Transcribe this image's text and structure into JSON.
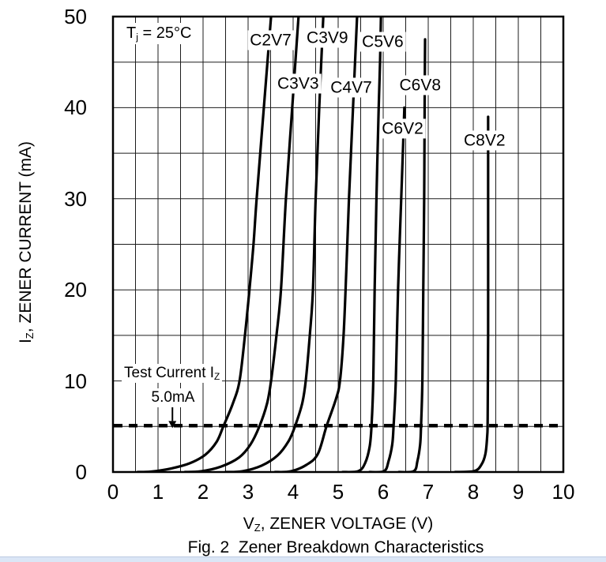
{
  "figure": {
    "caption": "Fig. 2  Zener Breakdown Characteristics",
    "annotation": {
      "prefix": "T",
      "sub": "j",
      "rest": " = 25°C"
    },
    "x_axis_title": {
      "prefix": "V",
      "sub": "Z",
      "rest": ", ZENER VOLTAGE (V)"
    },
    "y_axis_title": {
      "prefix": "I",
      "sub": "Z",
      "rest": ", ZENER CURRENT (mA)"
    }
  },
  "test_current": {
    "line1_prefix": "Test Current I",
    "line1_sub": "Z",
    "line2": "5.0mA",
    "value_mA": 5
  },
  "colors": {
    "ink": "#000000",
    "grid": "#1c1c1c",
    "page_strip": "#dbe6f6"
  },
  "chart_data": {
    "type": "line",
    "title": "Fig. 2  Zener Breakdown Characteristics",
    "xlabel": "VZ, ZENER VOLTAGE (V)",
    "ylabel": "IZ, ZENER CURRENT (mA)",
    "xlim": [
      0,
      10
    ],
    "ylim": [
      0,
      50
    ],
    "x_grid_step": 0.5,
    "y_grid_step": 5,
    "grid": true,
    "x_ticks": [
      "0",
      "1",
      "2",
      "3",
      "4",
      "5",
      "6",
      "7",
      "8",
      "9",
      "10"
    ],
    "x_tick_values": [
      0,
      1,
      2,
      3,
      4,
      5,
      6,
      7,
      8,
      9,
      10
    ],
    "y_ticks": [
      "0",
      "10",
      "20",
      "30",
      "40",
      "50"
    ],
    "y_tick_values": [
      0,
      10,
      20,
      30,
      40,
      50
    ],
    "dashed_test_line_mA": 5,
    "arrow": {
      "v": 1.32,
      "i_from": 7.6,
      "i_to": 5.6
    },
    "series": [
      {
        "name": "C2V7",
        "label_center": {
          "v": 3.5,
          "i": 47.4
        },
        "points": [
          [
            0.55,
            0
          ],
          [
            0.85,
            0.05
          ],
          [
            1.3,
            0.4
          ],
          [
            1.7,
            0.95
          ],
          [
            2.05,
            1.9
          ],
          [
            2.3,
            3.3
          ],
          [
            2.45,
            5
          ],
          [
            2.66,
            7.5
          ],
          [
            2.81,
            10
          ],
          [
            2.93,
            15
          ],
          [
            3.03,
            20
          ],
          [
            3.12,
            25
          ],
          [
            3.19,
            30
          ],
          [
            3.35,
            40
          ],
          [
            3.51,
            50
          ]
        ]
      },
      {
        "name": "C3V3",
        "label_center": {
          "v": 4.11,
          "i": 42.6
        },
        "points": [
          [
            1.6,
            0
          ],
          [
            1.95,
            0.08
          ],
          [
            2.4,
            0.6
          ],
          [
            2.8,
            1.6
          ],
          [
            3.05,
            3
          ],
          [
            3.25,
            5
          ],
          [
            3.42,
            7.5
          ],
          [
            3.51,
            10
          ],
          [
            3.63,
            15
          ],
          [
            3.73,
            20
          ],
          [
            3.84,
            30
          ],
          [
            3.98,
            40
          ],
          [
            4.12,
            50
          ]
        ]
      },
      {
        "name": "C3V9",
        "label_center": {
          "v": 4.76,
          "i": 47.7
        },
        "points": [
          [
            2.5,
            0
          ],
          [
            2.87,
            0.08
          ],
          [
            3.3,
            0.7
          ],
          [
            3.65,
            1.8
          ],
          [
            3.9,
            3.4
          ],
          [
            4.04,
            5
          ],
          [
            4.2,
            7.5
          ],
          [
            4.28,
            10
          ],
          [
            4.37,
            15
          ],
          [
            4.44,
            20
          ],
          [
            4.5,
            30
          ],
          [
            4.58,
            40
          ],
          [
            4.67,
            50
          ]
        ]
      },
      {
        "name": "C4V7",
        "label_center": {
          "v": 5.29,
          "i": 42.2
        },
        "points": [
          [
            3.6,
            0
          ],
          [
            3.95,
            0.08
          ],
          [
            4.3,
            0.8
          ],
          [
            4.55,
            2
          ],
          [
            4.74,
            5
          ],
          [
            4.95,
            8
          ],
          [
            5.04,
            10
          ],
          [
            5.12,
            15
          ],
          [
            5.18,
            22
          ],
          [
            5.24,
            30
          ],
          [
            5.33,
            40
          ],
          [
            5.42,
            50
          ]
        ]
      },
      {
        "name": "C5V6",
        "label_center": {
          "v": 5.99,
          "i": 47.2
        },
        "points": [
          [
            5.1,
            0
          ],
          [
            5.45,
            0.1
          ],
          [
            5.6,
            1
          ],
          [
            5.7,
            2.8
          ],
          [
            5.74,
            5
          ],
          [
            5.78,
            10
          ],
          [
            5.81,
            20
          ],
          [
            5.85,
            30
          ],
          [
            5.9,
            40
          ],
          [
            5.93,
            45
          ],
          [
            5.95,
            50
          ]
        ]
      },
      {
        "name": "C6V2",
        "label_center": {
          "v": 6.43,
          "i": 37.7
        },
        "points": [
          [
            5.7,
            0
          ],
          [
            6.02,
            0.1
          ],
          [
            6.12,
            1.2
          ],
          [
            6.2,
            3
          ],
          [
            6.23,
            5
          ],
          [
            6.28,
            10
          ],
          [
            6.33,
            20
          ],
          [
            6.4,
            30
          ],
          [
            6.45,
            37
          ],
          [
            6.47,
            40
          ]
        ]
      },
      {
        "name": "C6V8",
        "label_center": {
          "v": 6.82,
          "i": 42.5
        },
        "points": [
          [
            6.35,
            0
          ],
          [
            6.68,
            0.1
          ],
          [
            6.76,
            1.2
          ],
          [
            6.82,
            3
          ],
          [
            6.84,
            5
          ],
          [
            6.87,
            10
          ],
          [
            6.89,
            20
          ],
          [
            6.91,
            30
          ],
          [
            6.92,
            40
          ],
          [
            6.93,
            47.5
          ]
        ]
      },
      {
        "name": "C8V2",
        "label_center": {
          "v": 8.25,
          "i": 36.4
        },
        "points": [
          [
            7.6,
            0
          ],
          [
            8.02,
            0.1
          ],
          [
            8.18,
            0.8
          ],
          [
            8.27,
            2
          ],
          [
            8.31,
            4
          ],
          [
            8.32,
            6
          ],
          [
            8.33,
            15
          ],
          [
            8.33,
            28
          ],
          [
            8.33,
            39
          ]
        ]
      }
    ]
  }
}
